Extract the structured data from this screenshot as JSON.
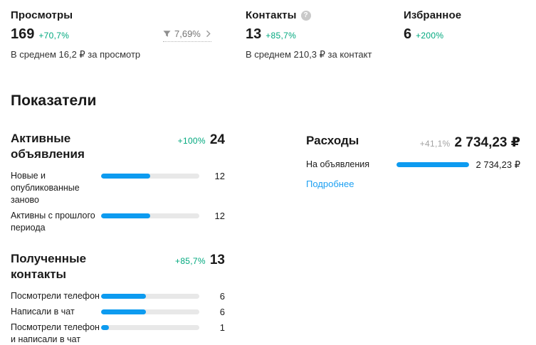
{
  "colors": {
    "positive_delta": "#00a87e",
    "neutral_delta": "#a3a3a3",
    "bar_fill": "#0d9bf0",
    "bar_track": "#e8e8e8",
    "link": "#1da0f2"
  },
  "summary": {
    "views": {
      "title": "Просмотры",
      "value": "169",
      "delta": "+70,7%",
      "note": "В среднем 16,2 ₽ за просмотр"
    },
    "contacts": {
      "title": "Контакты",
      "value": "13",
      "delta": "+85,7%",
      "note": "В среднем 210,3 ₽ за контакт",
      "help_icon": "question-mark"
    },
    "favorites": {
      "title": "Избранное",
      "value": "6",
      "delta": "+200%"
    },
    "conversion_badge": {
      "icon": "funnel",
      "value": "7,69%",
      "chevron": "›"
    }
  },
  "section": {
    "title": "Показатели"
  },
  "panels": {
    "active": {
      "title": "Активные объявления",
      "delta": "+100%",
      "total": "24",
      "rows": [
        {
          "label": "Новые и опубликованные заново",
          "value": "12",
          "pct": 50
        },
        {
          "label": "Активны с прошлого периода",
          "value": "12",
          "pct": 50
        }
      ]
    },
    "expenses": {
      "title": "Расходы",
      "delta": "+41,1%",
      "total": "2 734,23 ₽",
      "rows": [
        {
          "label": "На объявления",
          "value": "2 734,23 ₽",
          "pct": 100
        }
      ],
      "link": "Подробнее"
    },
    "received": {
      "title": "Полученные контакты",
      "delta": "+85,7%",
      "total": "13",
      "rows": [
        {
          "label": "Посмотрели телефон",
          "value": "6",
          "pct": 46
        },
        {
          "label": "Написали в чат",
          "value": "6",
          "pct": 46
        },
        {
          "label": "Посмотрели телефон и написали в чат",
          "value": "1",
          "pct": 8
        }
      ]
    }
  }
}
